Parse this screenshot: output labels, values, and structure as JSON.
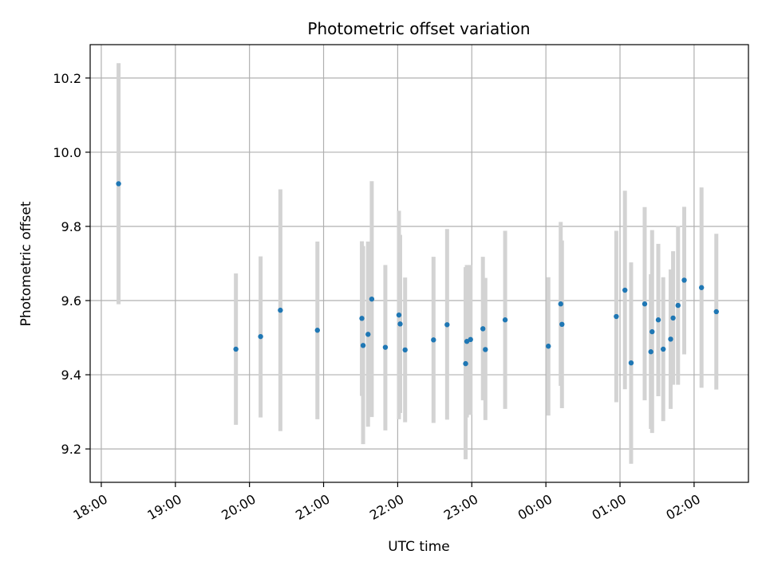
{
  "chart_data": {
    "type": "scatter",
    "title": "Photometric offset variation",
    "xlabel": "UTC time",
    "ylabel": "Photometric offset",
    "x_axis_kind": "time",
    "x_ticks": [
      "18:00",
      "19:00",
      "20:00",
      "21:00",
      "22:00",
      "23:00",
      "00:00",
      "01:00",
      "02:00"
    ],
    "xlim": [
      "17:51",
      "02:44"
    ],
    "ylim": [
      9.11,
      10.29
    ],
    "y_ticks": [
      9.2,
      9.4,
      9.6,
      9.8,
      10.0,
      10.2
    ],
    "grid": true,
    "marker_color": "#1f77b4",
    "errorbar_color": "#d3d3d3",
    "series": [
      {
        "points": [
          {
            "x": "18:14",
            "y": 9.915,
            "ylow": 9.59,
            "yhigh": 10.24
          },
          {
            "x": "19:49",
            "y": 9.469,
            "ylow": 9.265,
            "yhigh": 9.673
          },
          {
            "x": "20:09",
            "y": 9.503,
            "ylow": 9.285,
            "yhigh": 9.719
          },
          {
            "x": "20:25",
            "y": 9.574,
            "ylow": 9.248,
            "yhigh": 9.9
          },
          {
            "x": "20:55",
            "y": 9.52,
            "ylow": 9.28,
            "yhigh": 9.759
          },
          {
            "x": "21:31",
            "y": 9.552,
            "ylow": 9.343,
            "yhigh": 9.76
          },
          {
            "x": "21:32",
            "y": 9.479,
            "ylow": 9.213,
            "yhigh": 9.747
          },
          {
            "x": "21:36",
            "y": 9.509,
            "ylow": 9.26,
            "yhigh": 9.759
          },
          {
            "x": "21:39",
            "y": 9.604,
            "ylow": 9.286,
            "yhigh": 9.922
          },
          {
            "x": "21:50",
            "y": 9.474,
            "ylow": 9.25,
            "yhigh": 9.696
          },
          {
            "x": "22:01",
            "y": 9.561,
            "ylow": 9.28,
            "yhigh": 9.842
          },
          {
            "x": "22:02",
            "y": 9.537,
            "ylow": 9.297,
            "yhigh": 9.777
          },
          {
            "x": "22:06",
            "y": 9.467,
            "ylow": 9.272,
            "yhigh": 9.662
          },
          {
            "x": "22:29",
            "y": 9.494,
            "ylow": 9.27,
            "yhigh": 9.718
          },
          {
            "x": "22:40",
            "y": 9.535,
            "ylow": 9.279,
            "yhigh": 9.793
          },
          {
            "x": "22:55",
            "y": 9.43,
            "ylow": 9.172,
            "yhigh": 9.69
          },
          {
            "x": "22:56",
            "y": 9.49,
            "ylow": 9.285,
            "yhigh": 9.696
          },
          {
            "x": "22:59",
            "y": 9.495,
            "ylow": 9.292,
            "yhigh": 9.696
          },
          {
            "x": "23:09",
            "y": 9.524,
            "ylow": 9.331,
            "yhigh": 9.718
          },
          {
            "x": "23:11",
            "y": 9.468,
            "ylow": 9.278,
            "yhigh": 9.661
          },
          {
            "x": "23:27",
            "y": 9.548,
            "ylow": 9.308,
            "yhigh": 9.788
          },
          {
            "x": "00:02",
            "y": 9.477,
            "ylow": 9.29,
            "yhigh": 9.663
          },
          {
            "x": "00:12",
            "y": 9.591,
            "ylow": 9.37,
            "yhigh": 9.812
          },
          {
            "x": "00:13",
            "y": 9.536,
            "ylow": 9.31,
            "yhigh": 9.762
          },
          {
            "x": "00:57",
            "y": 9.557,
            "ylow": 9.326,
            "yhigh": 9.788
          },
          {
            "x": "01:04",
            "y": 9.628,
            "ylow": 9.361,
            "yhigh": 9.896
          },
          {
            "x": "01:09",
            "y": 9.432,
            "ylow": 9.16,
            "yhigh": 9.703
          },
          {
            "x": "01:20",
            "y": 9.591,
            "ylow": 9.331,
            "yhigh": 9.852
          },
          {
            "x": "01:25",
            "y": 9.462,
            "ylow": 9.254,
            "yhigh": 9.671
          },
          {
            "x": "01:26",
            "y": 9.516,
            "ylow": 9.243,
            "yhigh": 9.79
          },
          {
            "x": "01:31",
            "y": 9.548,
            "ylow": 9.342,
            "yhigh": 9.753
          },
          {
            "x": "01:35",
            "y": 9.469,
            "ylow": 9.275,
            "yhigh": 9.663
          },
          {
            "x": "01:41",
            "y": 9.496,
            "ylow": 9.308,
            "yhigh": 9.684
          },
          {
            "x": "01:43",
            "y": 9.553,
            "ylow": 9.373,
            "yhigh": 9.733
          },
          {
            "x": "01:47",
            "y": 9.587,
            "ylow": 9.373,
            "yhigh": 9.801
          },
          {
            "x": "01:52",
            "y": 9.655,
            "ylow": 9.455,
            "yhigh": 9.853
          },
          {
            "x": "02:06",
            "y": 9.635,
            "ylow": 9.365,
            "yhigh": 9.905
          },
          {
            "x": "02:18",
            "y": 9.57,
            "ylow": 9.36,
            "yhigh": 9.78
          }
        ]
      }
    ]
  }
}
